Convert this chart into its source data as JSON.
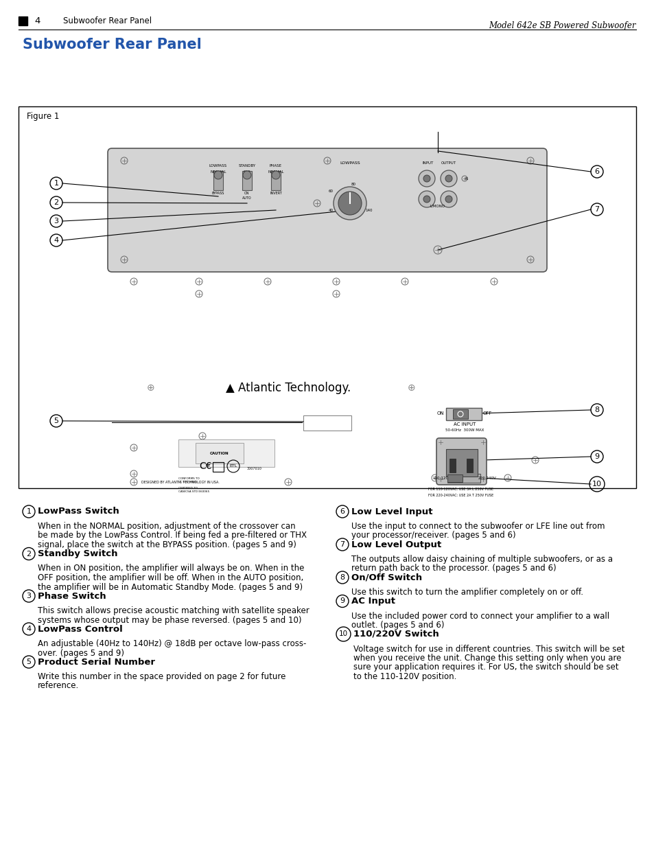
{
  "page_num": "4",
  "page_header_left": "Subwoofer Rear Panel",
  "page_header_right": "Model 642e SB Powered Subwoofer",
  "section_title": "Subwoofer Rear Panel",
  "figure_label": "Figure 1",
  "bg_color": "#ffffff",
  "items_left": [
    {
      "num": "1",
      "title": "LowPass Switch",
      "body": "When in the NORMAL position, adjustment of the crossover can\nbe made by the LowPass Control. If being fed a pre-filtered or THX\nsignal, place the switch at the BYPASS position. (pages 5 and 9)"
    },
    {
      "num": "2",
      "title": "Standby Switch",
      "body": "When in ON position, the amplifier will always be on. When in the\nOFF position, the amplifier will be off. When in the AUTO position,\nthe amplifier will be in Automatic Standby Mode. (pages 5 and 9)"
    },
    {
      "num": "3",
      "title": "Phase Switch",
      "body": "This switch allows precise acoustic matching with satellite speaker\nsystems whose output may be phase reversed. (pages 5 and 10)"
    },
    {
      "num": "4",
      "title": "LowPass Control",
      "body": "An adjustable (40Hz to 140Hz) @ 18dB per octave low-pass cross-\nover. (pages 5 and 9)"
    },
    {
      "num": "5",
      "title": "Product Serial Number",
      "body": "Write this number in the space provided on page 2 for future\nreference."
    }
  ],
  "items_right": [
    {
      "num": "6",
      "title": "Low Level Input",
      "body": "Use the input to connect to the subwoofer or LFE line out from\nyour processor/receiver. (pages 5 and 6)"
    },
    {
      "num": "7",
      "title": "Low Level Output",
      "body": "The outputs allow daisy chaining of multiple subwoofers, or as a\nreturn path back to the processor. (pages 5 and 6)"
    },
    {
      "num": "8",
      "title": "On/Off Switch",
      "body": "Use this switch to turn the amplifier completely on or off."
    },
    {
      "num": "9",
      "title": "AC Input",
      "body": "Use the included power cord to connect your amplifier to a wall\noutlet. (pages 5 and 6)"
    },
    {
      "num": "10",
      "title": "110/220V Switch",
      "body": "Voltage switch for use in different countries. This switch will be set\nwhen you receive the unit. Change this setting only when you are\nsure your application requires it. For US, the switch should be set\nto the 110-120V position."
    }
  ]
}
